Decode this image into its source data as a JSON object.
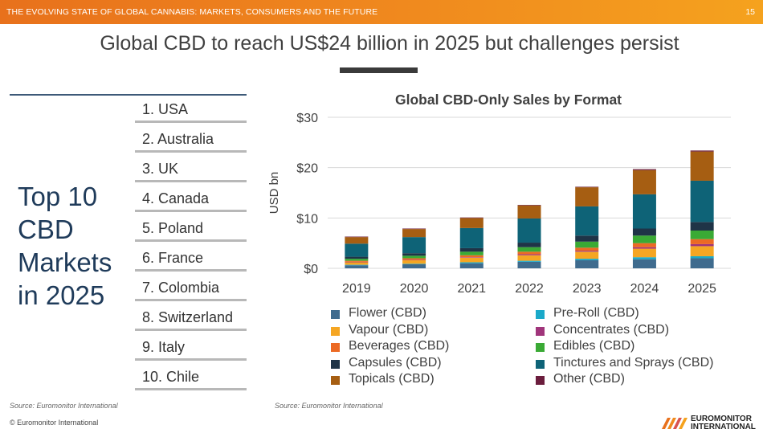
{
  "header": {
    "title": "THE EVOLVING STATE OF GLOBAL CANNABIS: MARKETS, CONSUMERS AND THE FUTURE",
    "page_number": "15",
    "accent_color": "#f08a1e"
  },
  "headline": "Global CBD to reach US$24 billion in 2025 but challenges persist",
  "top10": {
    "title_lines": [
      "Top 10",
      "CBD",
      "Markets",
      "in 2025"
    ],
    "items": [
      "1. USA",
      "2. Australia",
      "3. UK",
      "4. Canada",
      "5. Poland",
      "6. France",
      "7. Colombia",
      "8. Switzerland",
      "9. Italy",
      "10. Chile"
    ]
  },
  "chart_data": {
    "type": "bar",
    "stacked": true,
    "title": "Global CBD-Only Sales by Format",
    "ylabel": "USD bn",
    "xlabel": "",
    "ylim": [
      0,
      30
    ],
    "yticks": [
      0,
      10,
      20,
      30
    ],
    "ytick_labels": [
      "$0",
      "$10",
      "$20",
      "$30"
    ],
    "grid": true,
    "legend_position": "bottom",
    "categories": [
      "2019",
      "2020",
      "2021",
      "2022",
      "2023",
      "2024",
      "2025"
    ],
    "series": [
      {
        "name": "Flower (CBD)",
        "color": "#3f6b8e",
        "values": [
          0.6,
          0.8,
          1.0,
          1.3,
          1.6,
          1.8,
          2.0
        ]
      },
      {
        "name": "Pre-Roll (CBD)",
        "color": "#1ba9c9",
        "values": [
          0.1,
          0.1,
          0.2,
          0.2,
          0.3,
          0.4,
          0.4
        ]
      },
      {
        "name": "Vapour (CBD)",
        "color": "#f5a623",
        "values": [
          0.5,
          0.7,
          0.9,
          1.1,
          1.4,
          1.7,
          2.0
        ]
      },
      {
        "name": "Concentrates (CBD)",
        "color": "#a0357b",
        "values": [
          0.1,
          0.1,
          0.1,
          0.2,
          0.2,
          0.3,
          0.4
        ]
      },
      {
        "name": "Beverages (CBD)",
        "color": "#ec6a24",
        "values": [
          0.2,
          0.3,
          0.4,
          0.5,
          0.6,
          0.8,
          1.0
        ]
      },
      {
        "name": "Edibles (CBD)",
        "color": "#3aaa35",
        "values": [
          0.4,
          0.5,
          0.7,
          0.9,
          1.2,
          1.5,
          1.7
        ]
      },
      {
        "name": "Capsules (CBD)",
        "color": "#1f3447",
        "values": [
          0.4,
          0.5,
          0.7,
          0.9,
          1.2,
          1.4,
          1.7
        ]
      },
      {
        "name": "Tinctures and Sprays (CBD)",
        "color": "#0e6377",
        "values": [
          2.6,
          3.2,
          4.0,
          4.8,
          5.8,
          6.8,
          8.2
        ]
      },
      {
        "name": "Topicals (CBD)",
        "color": "#a65e12",
        "values": [
          1.3,
          1.6,
          2.0,
          2.6,
          3.8,
          4.8,
          5.8
        ]
      },
      {
        "name": "Other (CBD)",
        "color": "#6b1d3d",
        "values": [
          0.1,
          0.1,
          0.1,
          0.1,
          0.1,
          0.2,
          0.2
        ]
      }
    ]
  },
  "footer": {
    "source_left": "Source: Euromonitor International",
    "source_right": "Source: Euromonitor International",
    "copyright": "© Euromonitor International",
    "logo_line1": "EUROMONITOR",
    "logo_line2": "INTERNATIONAL"
  }
}
